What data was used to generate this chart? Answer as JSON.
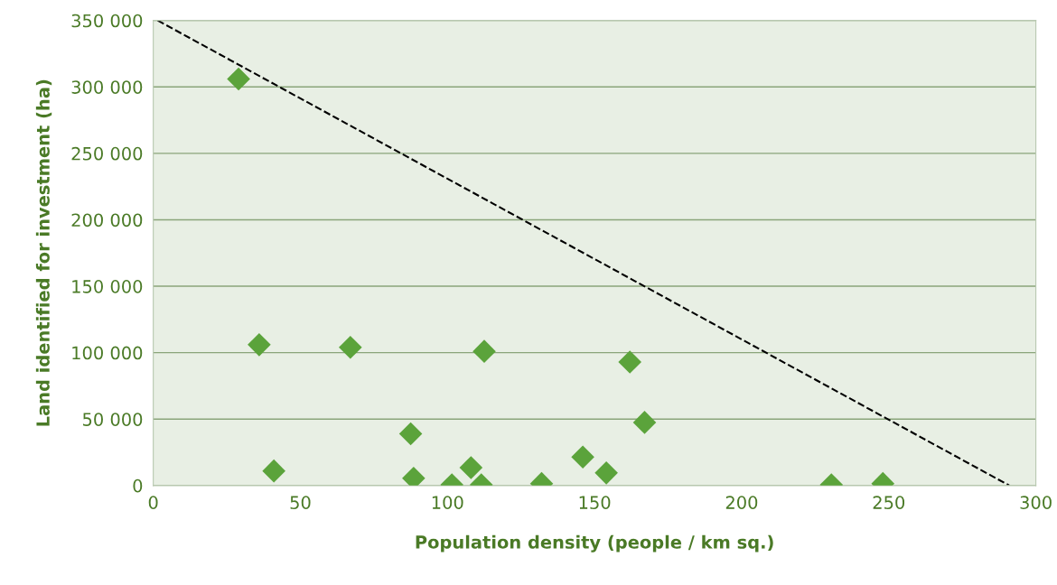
{
  "chart_data": {
    "type": "scatter",
    "xlabel": "Population density (people / km sq.)",
    "ylabel": "Land identified for investment (ha)",
    "xlim": [
      0,
      300
    ],
    "xticks": [
      0,
      50,
      100,
      150,
      200,
      250,
      300
    ],
    "ylim": [
      0,
      350000
    ],
    "yticks": [
      {
        "value": 0,
        "label": "0"
      },
      {
        "value": 50000,
        "label": "50 000"
      },
      {
        "value": 100000,
        "label": "100 000"
      },
      {
        "value": 150000,
        "label": "150 000"
      },
      {
        "value": 200000,
        "label": "200 000"
      },
      {
        "value": 250000,
        "label": "250 000"
      },
      {
        "value": 300000,
        "label": "300 000"
      },
      {
        "value": 350000,
        "label": "350 000"
      }
    ],
    "grid": "y",
    "marker": "diamond",
    "series": [
      {
        "color": "#5ba33b",
        "x": [
          29,
          36,
          41,
          67,
          87.5,
          88.5,
          101.5,
          108,
          111.5,
          112.5,
          132,
          146,
          154,
          162,
          167,
          230.5,
          248
        ],
        "values": [
          306000,
          106000,
          11000,
          104000,
          39000,
          5500,
          500,
          13500,
          500,
          101000,
          1500,
          21500,
          9500,
          93000,
          47500,
          500,
          1500
        ]
      },
      {
        "type": "line",
        "color": "#000000",
        "marker": "none",
        "line_style": "dashed",
        "x": [
          1.5,
          291
        ],
        "values": [
          350000,
          0
        ]
      }
    ]
  }
}
